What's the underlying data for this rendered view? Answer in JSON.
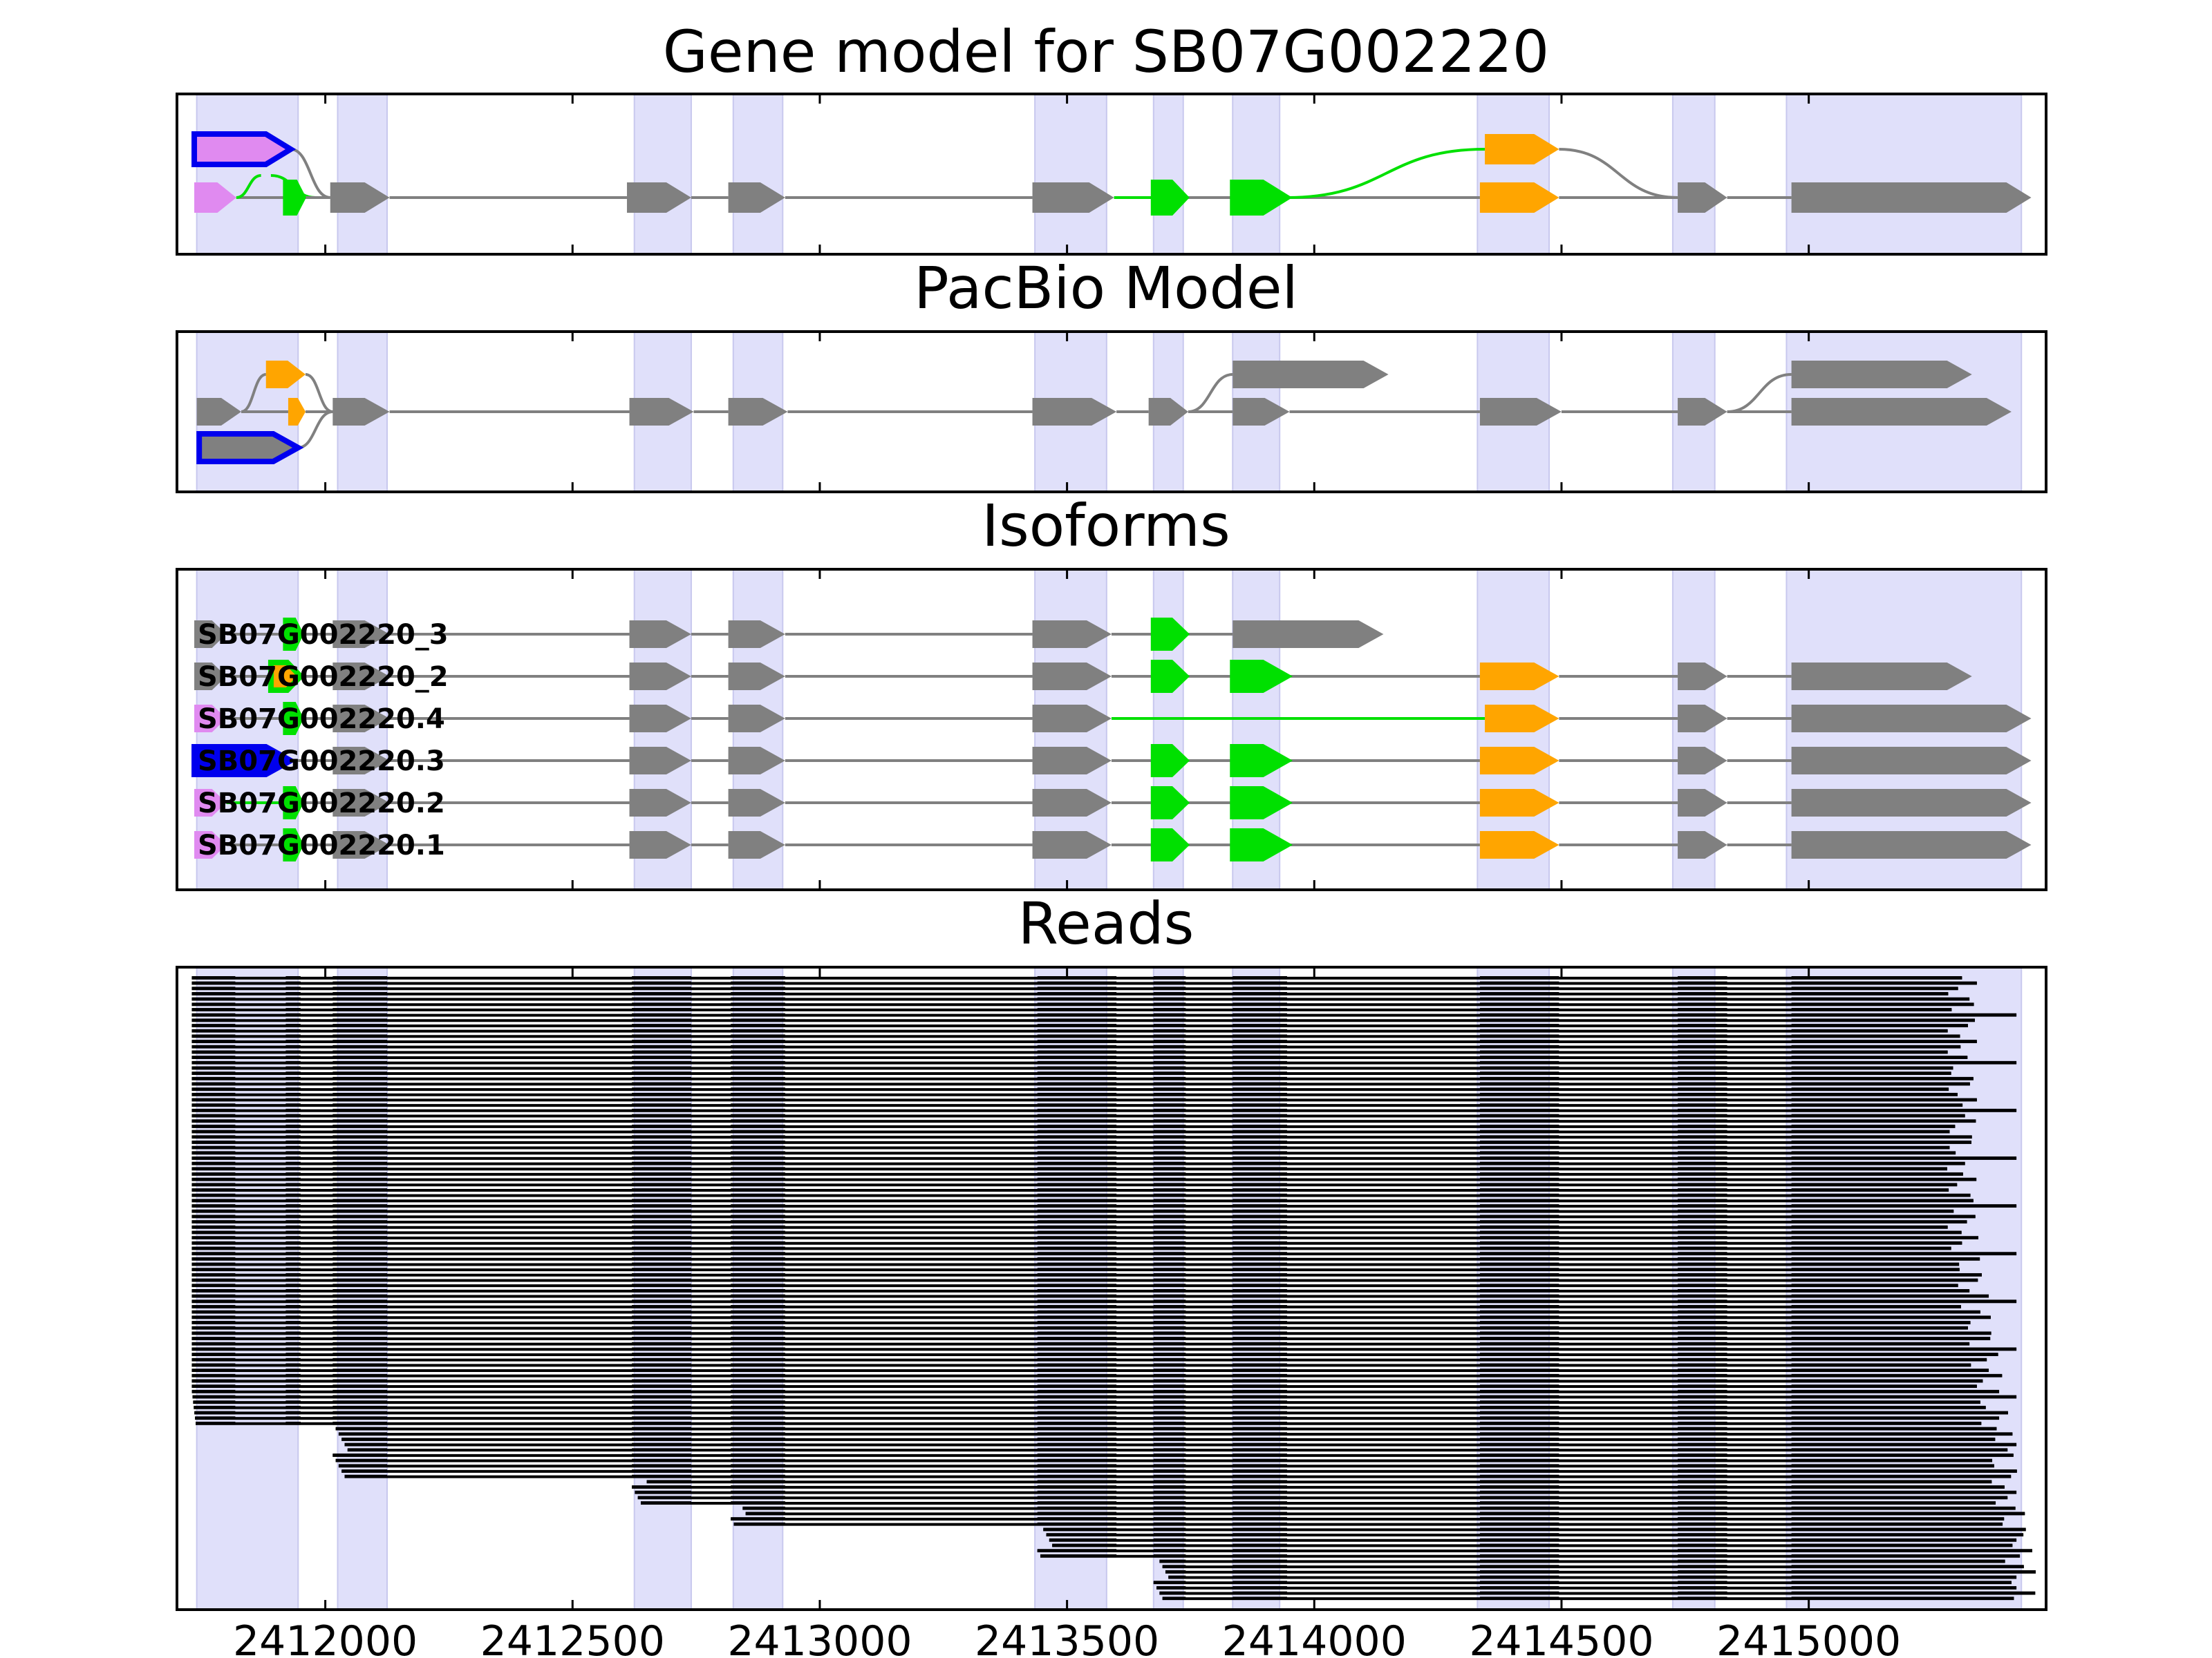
{
  "chart_data": [
    {
      "type": "gene-model",
      "title": "Gene model for SB07G002220",
      "xlim": [
        2411700,
        2415480
      ],
      "tracks": [
        {
          "exons": [
            [
              2411735,
              2411930,
              "#e08af0",
              "#0000ee"
            ]
          ]
        },
        {
          "exons": [
            [
              2411735,
              2411820,
              "#e08af0",
              null
            ],
            [
              2411920,
              2411955,
              "#00e000",
              "#00e000"
            ],
            [
              2412010,
              2412130,
              "#808080",
              null
            ],
            [
              2412610,
              2412740,
              "#808080",
              null
            ],
            [
              2412815,
              2412930,
              "#808080",
              null
            ],
            [
              2413430,
              2413595,
              "#808080",
              null
            ],
            [
              2413675,
              2413740,
              "#00e000",
              "#00e000"
            ],
            [
              2413835,
              2413945,
              "#00e000",
              "#00e000"
            ],
            [
              2414335,
              2414495,
              "#ffa500",
              null
            ],
            [
              2414735,
              2414835,
              "#808080",
              null
            ],
            [
              2414965,
              2415450,
              "#808080",
              null
            ]
          ]
        },
        {
          "exons": [
            [
              2414345,
              2414495,
              "#ffa500",
              null
            ]
          ]
        }
      ],
      "links": [
        [
          0,
          1,
          2411930,
          2412010,
          "#808080"
        ],
        [
          1,
          1,
          2411820,
          2411920,
          "#00e000"
        ],
        [
          1,
          1,
          2413595,
          2413675,
          "#00e000"
        ],
        [
          1,
          2,
          2413945,
          2414345,
          "#00e000"
        ],
        [
          2,
          1,
          2414495,
          2414735,
          "#808080"
        ]
      ]
    },
    {
      "type": "gene-model",
      "title": "PacBio Model",
      "xlim": [
        2411700,
        2415480
      ],
      "tracks": [
        {
          "exons": [
            [
              2411880,
              2411960,
              "#ffa500",
              null
            ],
            [
              2413835,
              2414150,
              "#808080",
              null
            ],
            [
              2414965,
              2415330,
              "#808080",
              null
            ]
          ]
        },
        {
          "exons": [
            [
              2411740,
              2411830,
              "#808080",
              null
            ],
            [
              2411925,
              2411960,
              "#ffa500",
              null
            ],
            [
              2412015,
              2412130,
              "#808080",
              null
            ],
            [
              2412615,
              2412745,
              "#808080",
              null
            ],
            [
              2412815,
              2412935,
              "#808080",
              null
            ],
            [
              2413430,
              2413600,
              "#808080",
              null
            ],
            [
              2413665,
              2413745,
              "#808080",
              null
            ],
            [
              2413835,
              2413950,
              "#808080",
              null
            ],
            [
              2414335,
              2414500,
              "#808080",
              null
            ],
            [
              2414735,
              2414835,
              "#808080",
              null
            ],
            [
              2414965,
              2415410,
              "#808080",
              null
            ]
          ]
        },
        {
          "exons": [
            [
              2411745,
              2411945,
              "#808080",
              "#0000ee"
            ]
          ]
        }
      ],
      "links": [
        [
          1,
          0,
          2411830,
          2411880,
          "#808080"
        ],
        [
          0,
          1,
          2411960,
          2412015,
          "#808080"
        ],
        [
          2,
          1,
          2411945,
          2412015,
          "#808080"
        ],
        [
          1,
          0,
          2413745,
          2413835,
          "#808080"
        ],
        [
          1,
          0,
          2414835,
          2414965,
          "#808080"
        ]
      ]
    },
    {
      "type": "gene-model",
      "title": "Isoforms",
      "xlim": [
        2411700,
        2415480
      ],
      "isoforms": [
        {
          "name": "SB07G002220_3",
          "exons": [
            [
              2411735,
              2411800,
              "#808080",
              null
            ],
            [
              2411920,
              2411950,
              "#00e000",
              "#00e000"
            ],
            [
              2412015,
              2412130,
              "#808080",
              null
            ],
            [
              2412615,
              2412740,
              "#808080",
              null
            ],
            [
              2412815,
              2412930,
              "#808080",
              null
            ],
            [
              2413430,
              2413590,
              "#808080",
              null
            ],
            [
              2413675,
              2413740,
              "#00e000",
              "#00e000"
            ],
            [
              2413835,
              2414140,
              "#808080",
              null
            ]
          ]
        },
        {
          "name": "SB07G002220_2",
          "exons": [
            [
              2411735,
              2411800,
              "#808080",
              null
            ],
            [
              2411890,
              2411950,
              "#ffa500",
              "#00e000"
            ],
            [
              2412015,
              2412130,
              "#808080",
              null
            ],
            [
              2412615,
              2412740,
              "#808080",
              null
            ],
            [
              2412815,
              2412930,
              "#808080",
              null
            ],
            [
              2413430,
              2413590,
              "#808080",
              null
            ],
            [
              2413675,
              2413740,
              "#00e000",
              "#00e000"
            ],
            [
              2413835,
              2413945,
              "#00e000",
              "#00e000"
            ],
            [
              2414335,
              2414495,
              "#ffa500",
              null
            ],
            [
              2414735,
              2414835,
              "#808080",
              null
            ],
            [
              2414965,
              2415330,
              "#808080",
              null
            ]
          ]
        },
        {
          "name": "SB07G002220.4",
          "exons": [
            [
              2411735,
              2411800,
              "#e08af0",
              null
            ],
            [
              2411920,
              2411950,
              "#00e000",
              "#00e000"
            ],
            [
              2412015,
              2412130,
              "#808080",
              null
            ],
            [
              2412615,
              2412740,
              "#808080",
              null
            ],
            [
              2412815,
              2412930,
              "#808080",
              null
            ],
            [
              2413430,
              2413590,
              "#808080",
              null
            ],
            [
              2414345,
              2414495,
              "#ffa500",
              null
            ],
            [
              2414735,
              2414835,
              "#808080",
              null
            ],
            [
              2414965,
              2415450,
              "#808080",
              null
            ]
          ],
          "green_intron": [
            2413590,
            2414345
          ]
        },
        {
          "name": "SB07G002220.3",
          "exons": [
            [
              2411735,
              2411930,
              "#0000ee",
              "#0000ee"
            ],
            [
              2412015,
              2412130,
              "#808080",
              null
            ],
            [
              2412615,
              2412740,
              "#808080",
              null
            ],
            [
              2412815,
              2412930,
              "#808080",
              null
            ],
            [
              2413430,
              2413590,
              "#808080",
              null
            ],
            [
              2413675,
              2413740,
              "#00e000",
              "#00e000"
            ],
            [
              2413835,
              2413945,
              "#00e000",
              "#00e000"
            ],
            [
              2414335,
              2414495,
              "#ffa500",
              null
            ],
            [
              2414735,
              2414835,
              "#808080",
              null
            ],
            [
              2414965,
              2415450,
              "#808080",
              null
            ]
          ]
        },
        {
          "name": "SB07G002220.2",
          "exons": [
            [
              2411735,
              2411800,
              "#e08af0",
              null
            ],
            [
              2411920,
              2411950,
              "#00e000",
              "#00e000"
            ],
            [
              2412015,
              2412130,
              "#808080",
              null
            ],
            [
              2412615,
              2412740,
              "#808080",
              null
            ],
            [
              2412815,
              2412930,
              "#808080",
              null
            ],
            [
              2413430,
              2413590,
              "#808080",
              null
            ],
            [
              2413675,
              2413740,
              "#00e000",
              "#00e000"
            ],
            [
              2413835,
              2413945,
              "#00e000",
              "#00e000"
            ],
            [
              2414335,
              2414495,
              "#ffa500",
              null
            ],
            [
              2414735,
              2414835,
              "#808080",
              null
            ],
            [
              2414965,
              2415450,
              "#808080",
              null
            ]
          ],
          "green_intron": [
            2411800,
            2411920
          ]
        },
        {
          "name": "SB07G002220.1",
          "exons": [
            [
              2411735,
              2411800,
              "#e08af0",
              null
            ],
            [
              2411920,
              2411950,
              "#00e000",
              "#00e000"
            ],
            [
              2412015,
              2412130,
              "#808080",
              null
            ],
            [
              2412615,
              2412740,
              "#808080",
              null
            ],
            [
              2412815,
              2412930,
              "#808080",
              null
            ],
            [
              2413430,
              2413590,
              "#808080",
              null
            ],
            [
              2413675,
              2413740,
              "#00e000",
              "#00e000"
            ],
            [
              2413835,
              2413945,
              "#00e000",
              "#00e000"
            ],
            [
              2414335,
              2414495,
              "#ffa500",
              null
            ],
            [
              2414735,
              2414835,
              "#808080",
              null
            ],
            [
              2414965,
              2415450,
              "#808080",
              null
            ]
          ]
        }
      ]
    },
    {
      "type": "reads",
      "title": "Reads",
      "xlim": [
        2411700,
        2415480
      ],
      "xticks": [
        2412000,
        2412500,
        2413000,
        2413500,
        2414000,
        2414500,
        2415000
      ],
      "xtick_labels": [
        "2412000",
        "2412500",
        "2413000",
        "2413500",
        "2414000",
        "2414500",
        "2415000"
      ],
      "read_count": 118,
      "blocks": [
        [
          2411730,
          2411818
        ],
        [
          2411920,
          2411950
        ],
        [
          2412015,
          2412125
        ],
        [
          2412620,
          2412740
        ],
        [
          2412820,
          2412930
        ],
        [
          2413440,
          2413600
        ],
        [
          2413675,
          2413740
        ],
        [
          2413835,
          2413945
        ],
        [
          2414335,
          2414495
        ],
        [
          2414735,
          2414835
        ],
        [
          2414965,
          2415320
        ]
      ]
    }
  ],
  "shading": [
    [
      2411740,
      2411945
    ],
    [
      2412025,
      2412125
    ],
    [
      2412625,
      2412740
    ],
    [
      2412825,
      2412925
    ],
    [
      2413435,
      2413580
    ],
    [
      2413675,
      2413735
    ],
    [
      2413835,
      2413930
    ],
    [
      2414330,
      2414475
    ],
    [
      2414725,
      2414810
    ],
    [
      2414955,
      2415430
    ]
  ],
  "colors": {
    "shade": "#e0e0fa",
    "exon_default": "#808080",
    "utr": "#e08af0",
    "alt": "#ffa500",
    "green": "#00e000",
    "blue": "#0000ee"
  }
}
